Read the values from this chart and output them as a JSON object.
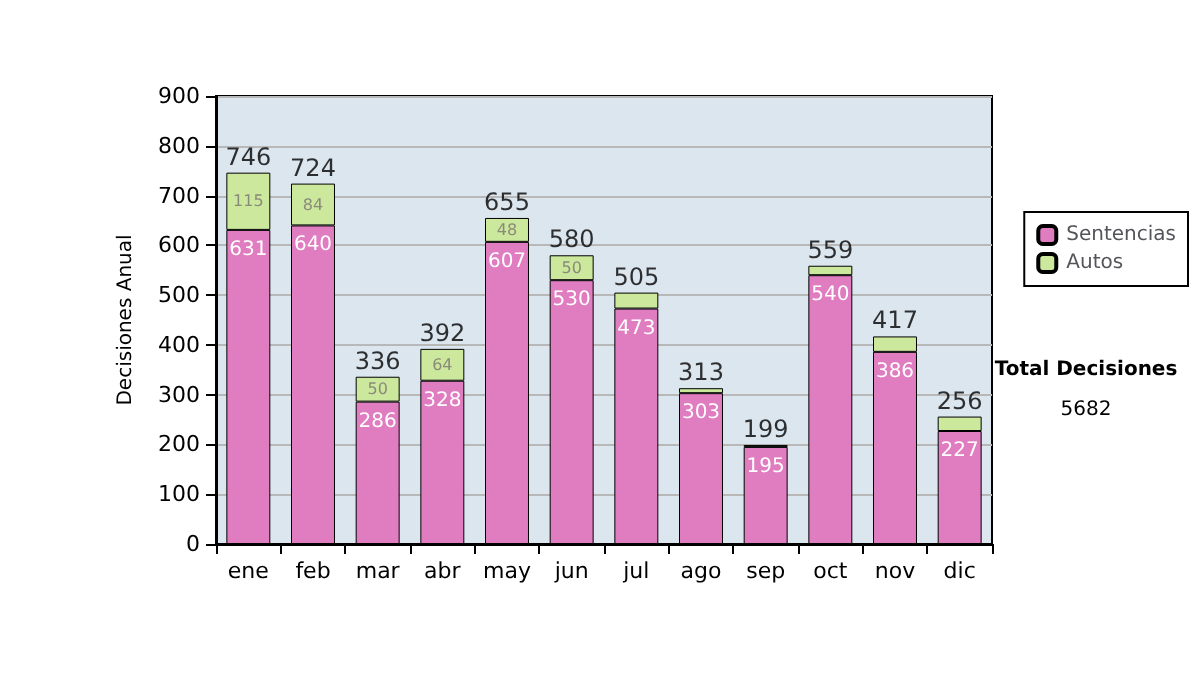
{
  "chart_data": {
    "type": "bar",
    "ylabel": "Decisiones Anual",
    "categories": [
      "ene",
      "feb",
      "mar",
      "abr",
      "may",
      "jun",
      "jul",
      "ago",
      "sep",
      "oct",
      "nov",
      "dic"
    ],
    "stacked": true,
    "series": [
      {
        "name": "Sentencias",
        "color": "#e07cc0",
        "values": [
          631,
          640,
          286,
          328,
          607,
          530,
          473,
          303,
          195,
          540,
          386,
          227
        ],
        "value_labels": [
          "631",
          "640",
          "286",
          "328",
          "607",
          "530",
          "473",
          "303",
          "195",
          "540",
          "386",
          "227"
        ]
      },
      {
        "name": "Autos",
        "color": "#cce89c",
        "values": [
          115,
          84,
          50,
          64,
          48,
          50,
          32,
          10,
          4,
          19,
          31,
          29
        ],
        "value_labels": [
          "115",
          "84",
          "50",
          "64",
          "48",
          "50",
          null,
          null,
          null,
          null,
          null,
          null
        ]
      }
    ],
    "totals": [
      "746",
      "724",
      "336",
      "392",
      "655",
      "580",
      "505",
      "313",
      "199",
      "559",
      "417",
      "256"
    ],
    "ylim": [
      0,
      900
    ],
    "yticks": [
      0,
      100,
      200,
      300,
      400,
      500,
      600,
      700,
      800,
      900
    ],
    "grid": "y",
    "legend": "right",
    "annotations": [
      "Total Decisiones",
      "5682"
    ]
  }
}
